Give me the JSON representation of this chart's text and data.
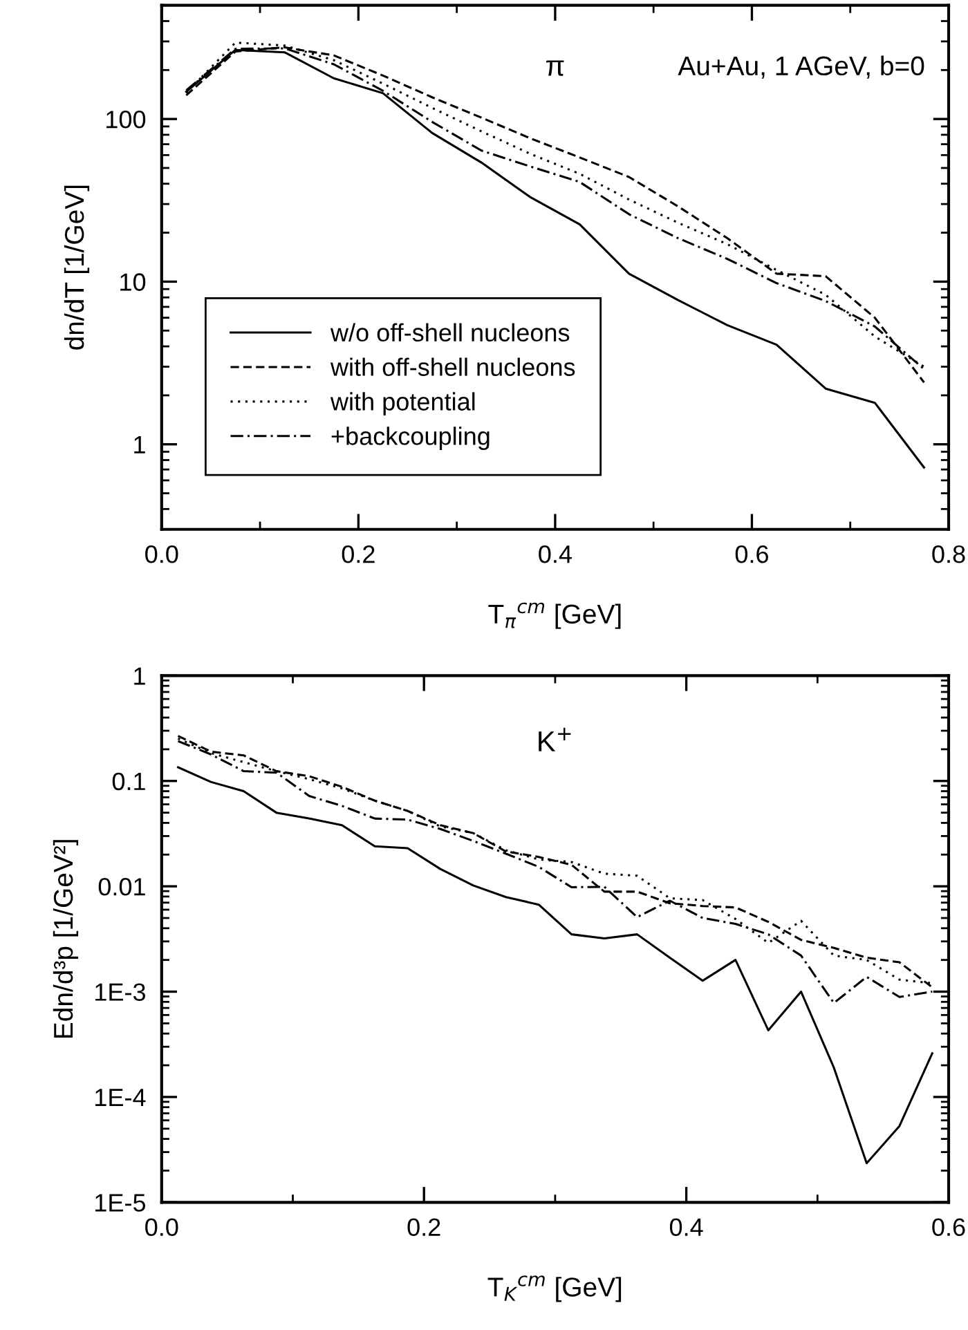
{
  "chart_data": [
    {
      "type": "line",
      "xlabel": "T$_{π}$$^{cm}$ [GeV]",
      "ylabel": "dn/dT [1/GeV]",
      "annotations": [
        "π",
        "Au+Au, 1 AGeV, b=0"
      ],
      "x": [
        0.025,
        0.075,
        0.125,
        0.175,
        0.225,
        0.275,
        0.325,
        0.375,
        0.425,
        0.475,
        0.525,
        0.575,
        0.625,
        0.675,
        0.725,
        0.775
      ],
      "series": [
        {
          "name": "w/o off-shell nucleons",
          "color": "#000000",
          "line_style": "solid",
          "values": [
            147,
            266,
            257,
            178,
            144,
            82,
            54,
            33,
            22.5,
            11.2,
            7.7,
            5.4,
            4.1,
            2.2,
            1.8,
            0.72
          ]
        },
        {
          "name": "with off-shell nucleons",
          "color": "#000000",
          "line_style": "dashed",
          "values": [
            140,
            260,
            276,
            246,
            185,
            136,
            102,
            76,
            58,
            44,
            29,
            18.5,
            11.2,
            10.8,
            6,
            2.4
          ]
        },
        {
          "name": "with potential",
          "color": "#000000",
          "line_style": "dotted",
          "values": [
            145,
            295,
            283,
            230,
            165,
            117,
            84,
            61,
            46,
            32,
            23,
            17,
            11.8,
            8.3,
            4.6,
            3.0
          ]
        },
        {
          "name": "+backcoupling",
          "color": "#000000",
          "line_style": "dashdot",
          "values": [
            150,
            270,
            272,
            217,
            149,
            96,
            64,
            51,
            41,
            26,
            18.5,
            13.8,
            9.8,
            7.6,
            5.3,
            2.9
          ]
        }
      ],
      "log": "y",
      "xlim": [
        0,
        0.8
      ],
      "ylim": [
        0.3,
        500
      ],
      "xticks": [
        {
          "value": 0,
          "label": "0.0"
        },
        0.2,
        0.4,
        0.6,
        0.8
      ],
      "yticks": [
        1,
        10,
        100
      ],
      "legend": "bottom left",
      "grid": false
    },
    {
      "type": "line",
      "xlabel": "T$_{K}$$^{cm}$ [GeV]",
      "ylabel": "Edn/d³p [1/GeV²]",
      "annotations": [
        "K$^{+}$"
      ],
      "x": [
        0.0125,
        0.0375,
        0.0625,
        0.0875,
        0.1125,
        0.1375,
        0.1625,
        0.1875,
        0.2125,
        0.2375,
        0.2625,
        0.2875,
        0.3125,
        0.3375,
        0.3625,
        0.3875,
        0.4125,
        0.4375,
        0.4625,
        0.4875,
        0.5125,
        0.5375,
        0.5625,
        0.5875
      ],
      "series": [
        {
          "color": "#000000",
          "line_style": "solid",
          "values": [
            0.135,
            0.098,
            0.08,
            0.05,
            0.044,
            0.038,
            0.024,
            0.023,
            0.0146,
            0.0102,
            0.0079,
            0.0067,
            0.0035,
            0.0032,
            0.0035,
            0.0021,
            0.00127,
            0.002,
            0.00043,
            0.001,
            0.00019,
            2.35e-05,
            5.3e-05,
            0.00026
          ]
        },
        {
          "color": "#000000",
          "line_style": "dashed",
          "values": [
            0.268,
            0.19,
            0.175,
            0.124,
            0.111,
            0.088,
            0.065,
            0.052,
            0.038,
            0.032,
            0.0214,
            0.019,
            0.016,
            0.0089,
            0.0089,
            0.0069,
            0.0065,
            0.0063,
            0.0046,
            0.0031,
            0.0026,
            0.0021,
            0.0019,
            0.0011
          ]
        },
        {
          "color": "#000000",
          "line_style": "dotted",
          "values": [
            0.253,
            0.184,
            0.151,
            0.124,
            0.104,
            0.085,
            0.065,
            0.052,
            0.037,
            0.032,
            0.022,
            0.018,
            0.017,
            0.0132,
            0.0126,
            0.0077,
            0.0074,
            0.0049,
            0.0029,
            0.0047,
            0.0022,
            0.002,
            0.0013,
            0.0012
          ]
        },
        {
          "color": "#000000",
          "line_style": "dashdot",
          "values": [
            0.239,
            0.179,
            0.124,
            0.12,
            0.072,
            0.058,
            0.044,
            0.043,
            0.035,
            0.027,
            0.0204,
            0.0153,
            0.0098,
            0.0099,
            0.0051,
            0.0073,
            0.005,
            0.0044,
            0.0035,
            0.0022,
            0.00078,
            0.00138,
            0.00089,
            0.001
          ]
        }
      ],
      "log": "y",
      "xlim": [
        0,
        0.6
      ],
      "ylim": [
        1e-05,
        1
      ],
      "xticks": [
        {
          "value": 0,
          "label": "0.0"
        },
        0.2,
        0.4,
        0.6
      ],
      "yticks": [
        {
          "value": 1e-05,
          "label": "1E-5"
        },
        {
          "value": 0.0001,
          "label": "1E-4"
        },
        {
          "value": 0.001,
          "label": "1E-3"
        },
        0.01,
        0.1,
        1
      ],
      "grid": false
    }
  ]
}
